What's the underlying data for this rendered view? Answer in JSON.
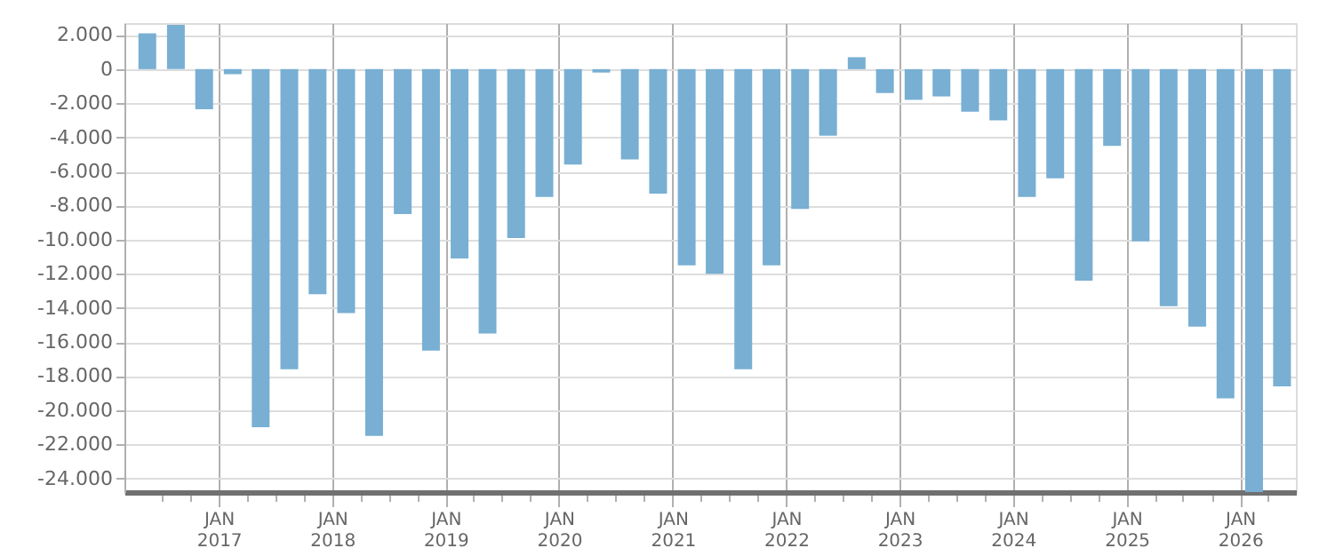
{
  "chart_data": {
    "type": "bar",
    "x": [
      "2016-05-16",
      "2016-08-16",
      "2016-11-15",
      "2017-02-15",
      "2017-05-16",
      "2017-08-16",
      "2017-11-15",
      "2018-02-15",
      "2018-05-16",
      "2018-08-16",
      "2018-11-15",
      "2019-02-15",
      "2019-05-16",
      "2019-08-16",
      "2019-11-15",
      "2020-02-15",
      "2020-05-16",
      "2020-08-16",
      "2020-11-15",
      "2021-02-15",
      "2021-05-16",
      "2021-08-16",
      "2021-11-15",
      "2022-02-15",
      "2022-05-16",
      "2022-08-16",
      "2022-11-15",
      "2023-02-15",
      "2023-05-16",
      "2023-08-16",
      "2023-11-15",
      "2024-02-15",
      "2024-05-16",
      "2024-08-16",
      "2024-11-15",
      "2025-02-15",
      "2025-05-16",
      "2025-08-16",
      "2025-11-15",
      "2026-02-15",
      "2026-05-16"
    ],
    "series": [
      {
        "color": "#78afd3",
        "values": [
          2100,
          2600,
          -2350,
          -300,
          -21000,
          -17600,
          -13200,
          -14300,
          -21500,
          -8500,
          -16500,
          -11100,
          -15500,
          -9900,
          -7500,
          -5600,
          -200,
          -5300,
          -7300,
          -11500,
          -12000,
          -17600,
          -11500,
          -8200,
          -3900,
          700,
          -1400,
          -1800,
          -1600,
          -2500,
          -3000,
          -7500,
          -6400,
          -12400,
          -4500,
          -10100,
          -13900,
          -15100,
          -19300,
          -24800,
          -18600
        ]
      }
    ],
    "xlim": [
      "2016-04-01",
      "2026-06-01"
    ],
    "ylim": [
      -24800,
      2700
    ],
    "xticks": [
      {
        "value": "2016-07-01",
        "label": null
      },
      {
        "value": "2016-10-01",
        "label": null
      },
      {
        "value": "2017-01-01",
        "label": "JAN\n2017"
      },
      {
        "value": "2017-04-01",
        "label": null
      },
      {
        "value": "2017-07-01",
        "label": null
      },
      {
        "value": "2017-10-01",
        "label": null
      },
      {
        "value": "2018-01-01",
        "label": "JAN\n2018"
      },
      {
        "value": "2018-04-01",
        "label": null
      },
      {
        "value": "2018-07-01",
        "label": null
      },
      {
        "value": "2018-10-01",
        "label": null
      },
      {
        "value": "2019-01-01",
        "label": "JAN\n2019"
      },
      {
        "value": "2019-04-01",
        "label": null
      },
      {
        "value": "2019-07-01",
        "label": null
      },
      {
        "value": "2019-10-01",
        "label": null
      },
      {
        "value": "2020-01-01",
        "label": "JAN\n2020"
      },
      {
        "value": "2020-04-01",
        "label": null
      },
      {
        "value": "2020-07-01",
        "label": null
      },
      {
        "value": "2020-10-01",
        "label": null
      },
      {
        "value": "2021-01-01",
        "label": "JAN\n2021"
      },
      {
        "value": "2021-04-01",
        "label": null
      },
      {
        "value": "2021-07-01",
        "label": null
      },
      {
        "value": "2021-10-01",
        "label": null
      },
      {
        "value": "2022-01-01",
        "label": "JAN\n2022"
      },
      {
        "value": "2022-04-01",
        "label": null
      },
      {
        "value": "2022-07-01",
        "label": null
      },
      {
        "value": "2022-10-01",
        "label": null
      },
      {
        "value": "2023-01-01",
        "label": "JAN\n2023"
      },
      {
        "value": "2023-04-01",
        "label": null
      },
      {
        "value": "2023-07-01",
        "label": null
      },
      {
        "value": "2023-10-01",
        "label": null
      },
      {
        "value": "2024-01-01",
        "label": "JAN\n2024"
      },
      {
        "value": "2024-04-01",
        "label": null
      },
      {
        "value": "2024-07-01",
        "label": null
      },
      {
        "value": "2024-10-01",
        "label": null
      },
      {
        "value": "2025-01-01",
        "label": "JAN\n2025"
      },
      {
        "value": "2025-04-01",
        "label": null
      },
      {
        "value": "2025-07-01",
        "label": null
      },
      {
        "value": "2025-10-01",
        "label": null
      },
      {
        "value": "2026-01-01",
        "label": "JAN\n2026"
      },
      {
        "value": "2026-04-01",
        "label": null
      }
    ],
    "yticks": [
      {
        "value": 2000,
        "label": "2.000"
      },
      {
        "value": 0,
        "label": "0"
      },
      {
        "value": -2000,
        "label": "-2.000"
      },
      {
        "value": -4000,
        "label": "-4.000"
      },
      {
        "value": -6000,
        "label": "-6.000"
      },
      {
        "value": -8000,
        "label": "-8.000"
      },
      {
        "value": -10000,
        "label": "-10.000"
      },
      {
        "value": -12000,
        "label": "-12.000"
      },
      {
        "value": -14000,
        "label": "-14.000"
      },
      {
        "value": -16000,
        "label": "-16.000"
      },
      {
        "value": -18000,
        "label": "-18.000"
      },
      {
        "value": -20000,
        "label": "-20.000"
      },
      {
        "value": -22000,
        "label": "-22.000"
      },
      {
        "value": -24000,
        "label": "-24.000"
      }
    ],
    "grid": true
  }
}
